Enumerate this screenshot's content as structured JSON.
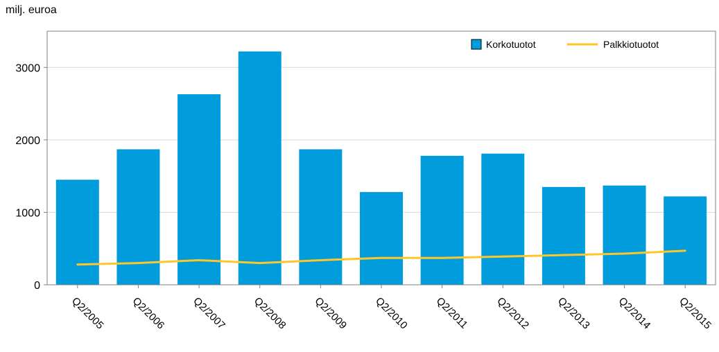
{
  "chart_data": {
    "type": "bar",
    "unit_label": "milj. euroa",
    "categories": [
      "Q2/2005",
      "Q2/2006",
      "Q2/2007",
      "Q2/2008",
      "Q2/2009",
      "Q2/2010",
      "Q2/2011",
      "Q2/2012",
      "Q2/2013",
      "Q2/2014",
      "Q2/2015"
    ],
    "series": [
      {
        "name": "Korkotuotot",
        "type": "bar",
        "color": "#009cdc",
        "values": [
          1450,
          1870,
          2630,
          3220,
          1870,
          1280,
          1780,
          1810,
          1350,
          1370,
          1220
        ]
      },
      {
        "name": "Palkkiotuotot",
        "type": "line",
        "color": "#ffc62a",
        "values": [
          280,
          300,
          340,
          300,
          340,
          370,
          370,
          390,
          410,
          430,
          470
        ]
      }
    ],
    "ylim": [
      0,
      3500
    ],
    "yticks": [
      0,
      1000,
      2000,
      3000
    ],
    "grid": true,
    "legend_position": "top-right"
  }
}
